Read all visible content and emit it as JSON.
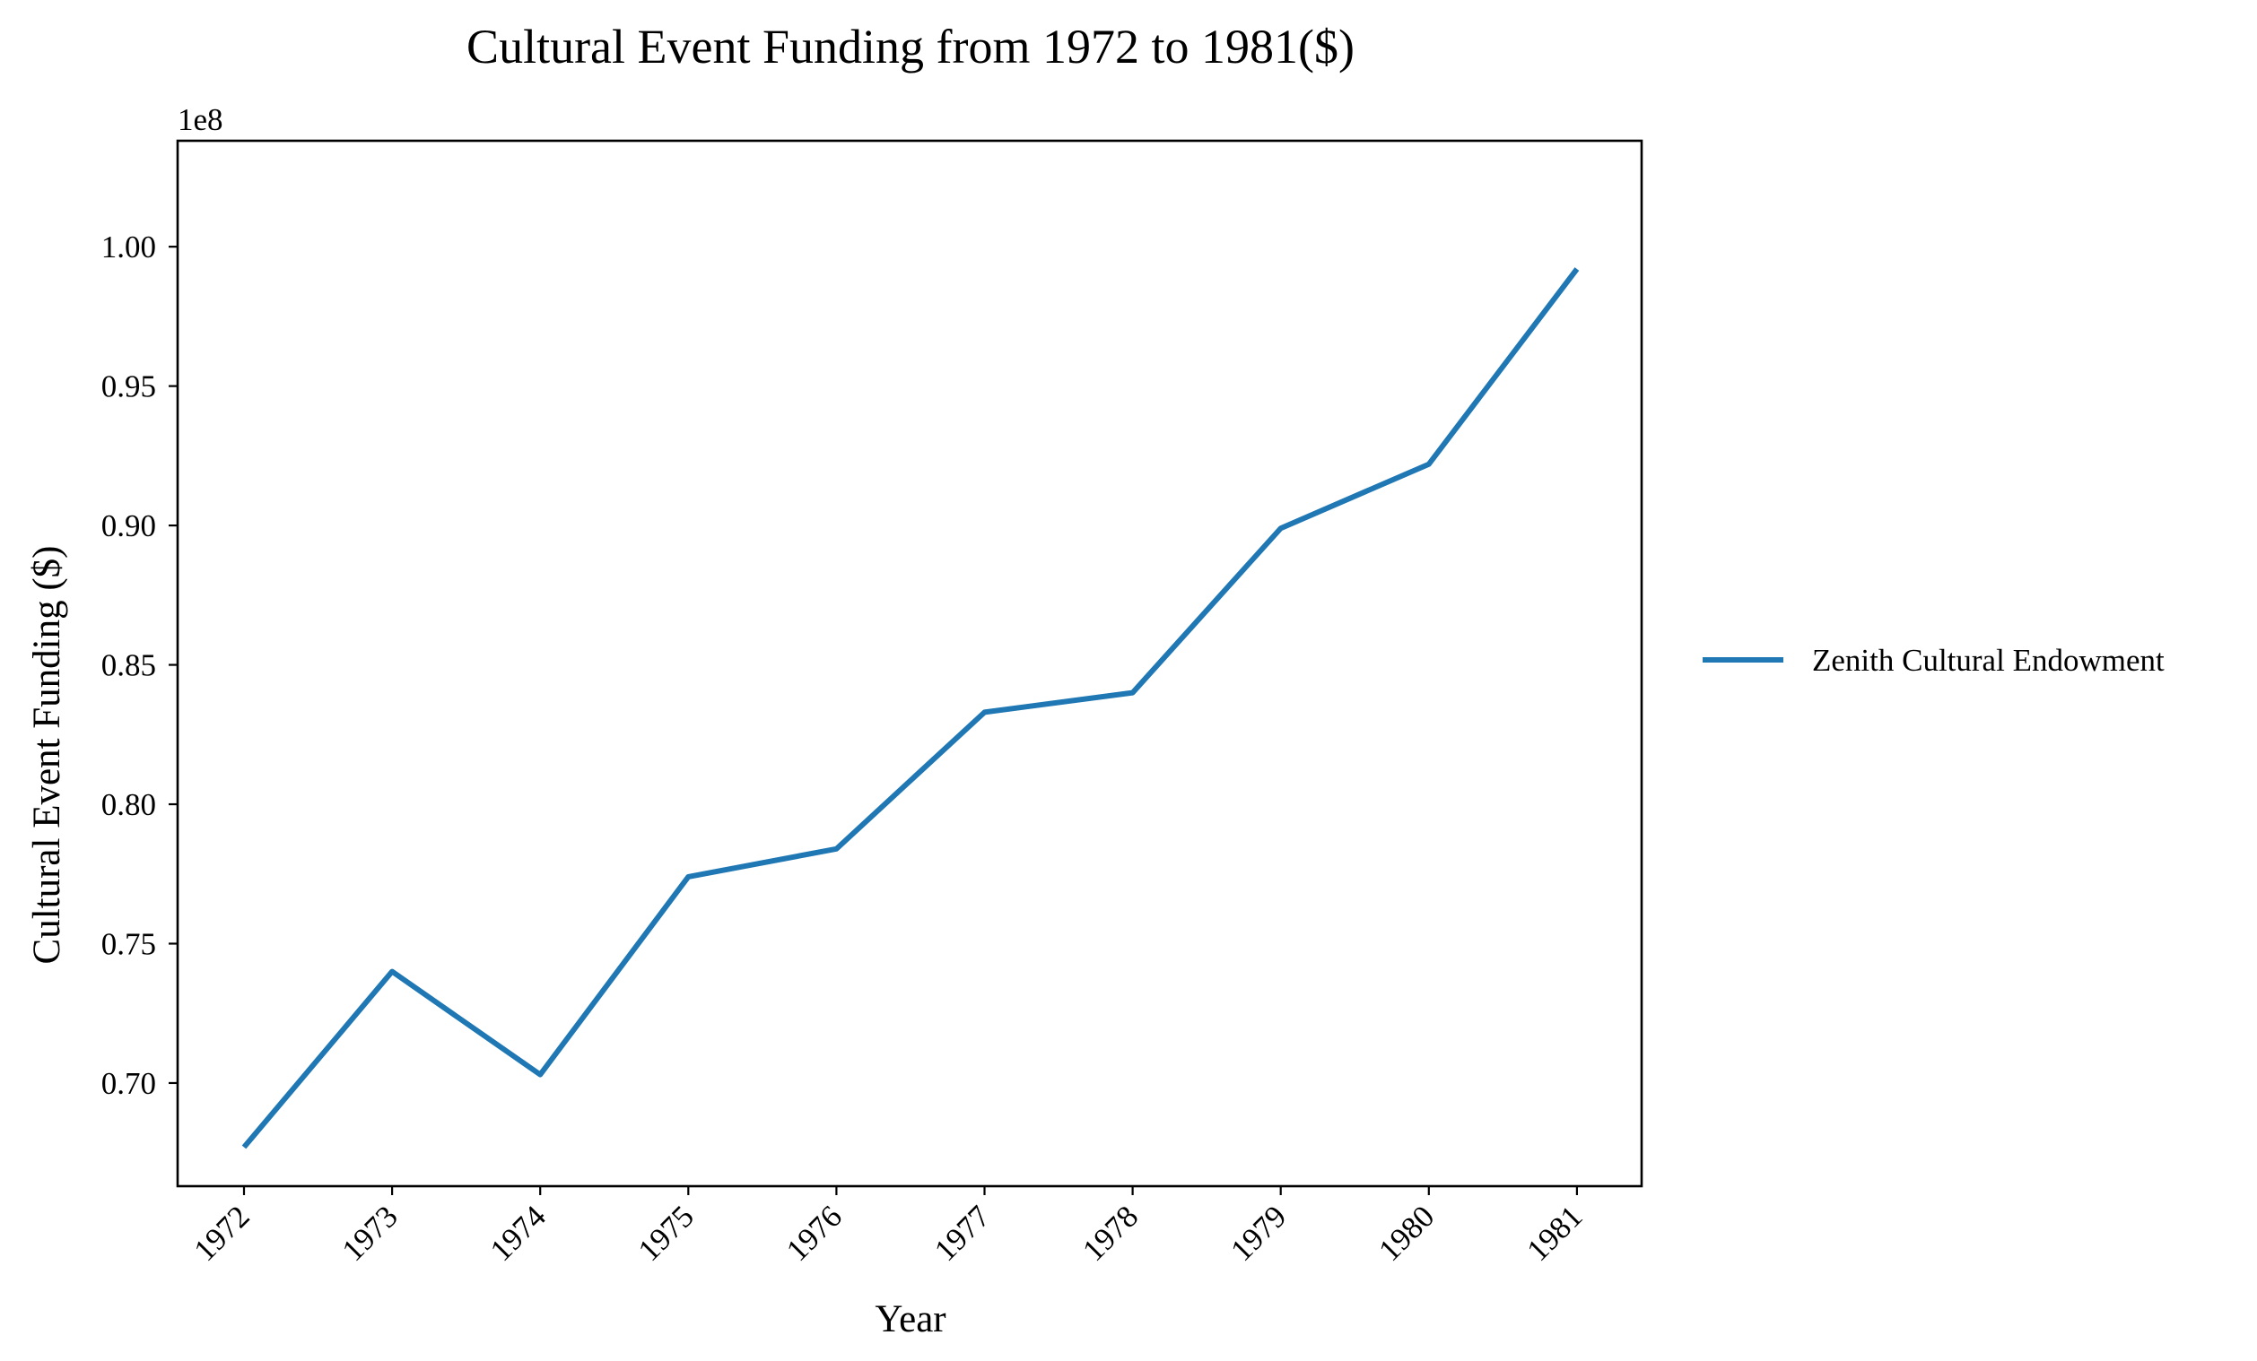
{
  "chart_data": {
    "type": "line",
    "title": "Cultural Event Funding from 1972 to 1981($)",
    "xlabel": "Year",
    "ylabel": "Cultural Event Funding ($)",
    "y_offset_label": "1e8",
    "categories": [
      "1972",
      "1973",
      "1974",
      "1975",
      "1976",
      "1977",
      "1978",
      "1979",
      "1980",
      "1981"
    ],
    "series": [
      {
        "name": "Zenith Cultural Endowment",
        "color": "#1f77b4",
        "values": [
          67700000,
          74000000,
          70300000,
          77400000,
          78400000,
          83300000,
          84000000,
          89900000,
          92200000,
          99200000
        ]
      }
    ],
    "y_ticks": [
      0.7,
      0.75,
      0.8,
      0.85,
      0.9,
      0.95,
      1.0
    ],
    "y_tick_labels": [
      "0.70",
      "0.75",
      "0.80",
      "0.85",
      "0.90",
      "0.95",
      "1.00"
    ],
    "ylim": [
      66300000,
      103800000
    ],
    "grid": false,
    "legend_position": "right"
  }
}
